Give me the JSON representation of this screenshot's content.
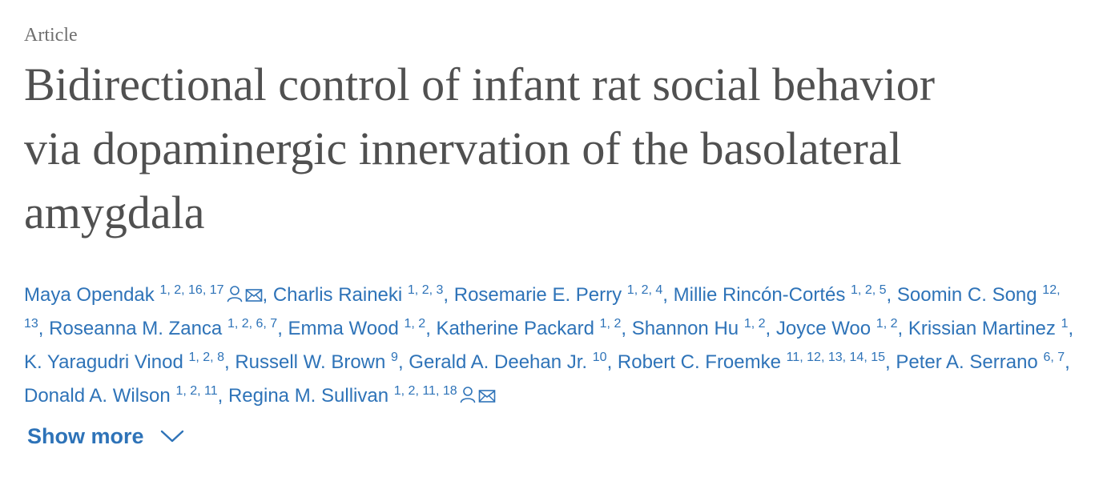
{
  "article_type": "Article",
  "title_lines": [
    "Bidirectional control of infant rat social behavior",
    "via dopaminergic innervation of the basolateral",
    "amygdala"
  ],
  "authors": [
    {
      "name": "Maya Opendak",
      "affiliations": "1, 2, 16, 17",
      "icons": [
        "person-icon",
        "mail-icon"
      ]
    },
    {
      "name": "Charlis Raineki",
      "affiliations": "1, 2, 3"
    },
    {
      "name": "Rosemarie E. Perry",
      "affiliations": "1, 2, 4"
    },
    {
      "name": "Millie Rincón-Cortés",
      "affiliations": "1, 2, 5"
    },
    {
      "name": "Soomin C. Song",
      "affiliations": "12, 13"
    },
    {
      "name": "Roseanna M. Zanca",
      "affiliations": "1, 2, 6, 7"
    },
    {
      "name": "Emma Wood",
      "affiliations": "1, 2"
    },
    {
      "name": "Katherine Packard",
      "affiliations": "1, 2"
    },
    {
      "name": "Shannon Hu",
      "affiliations": "1, 2"
    },
    {
      "name": "Joyce Woo",
      "affiliations": "1, 2"
    },
    {
      "name": "Krissian Martinez",
      "affiliations": "1"
    },
    {
      "name": "K. Yaragudri Vinod",
      "affiliations": "1, 2, 8"
    },
    {
      "name": "Russell W. Brown",
      "affiliations": "9"
    },
    {
      "name": "Gerald A. Deehan Jr.",
      "affiliations": "10"
    },
    {
      "name": "Robert C. Froemke",
      "affiliations": "11, 12, 13, 14, 15"
    },
    {
      "name": "Peter A. Serrano",
      "affiliations": "6, 7"
    },
    {
      "name": "Donald A. Wilson",
      "affiliations": "1, 2, 11"
    },
    {
      "name": "Regina M. Sullivan",
      "affiliations": "1, 2, 11, 18",
      "icons": [
        "person-icon",
        "mail-icon"
      ]
    }
  ],
  "show_more": {
    "label": "Show more",
    "icon": "chevron-down-icon"
  },
  "colors": {
    "link": "#2e73b8",
    "title": "#505050",
    "article_type": "#6f6f6f"
  }
}
